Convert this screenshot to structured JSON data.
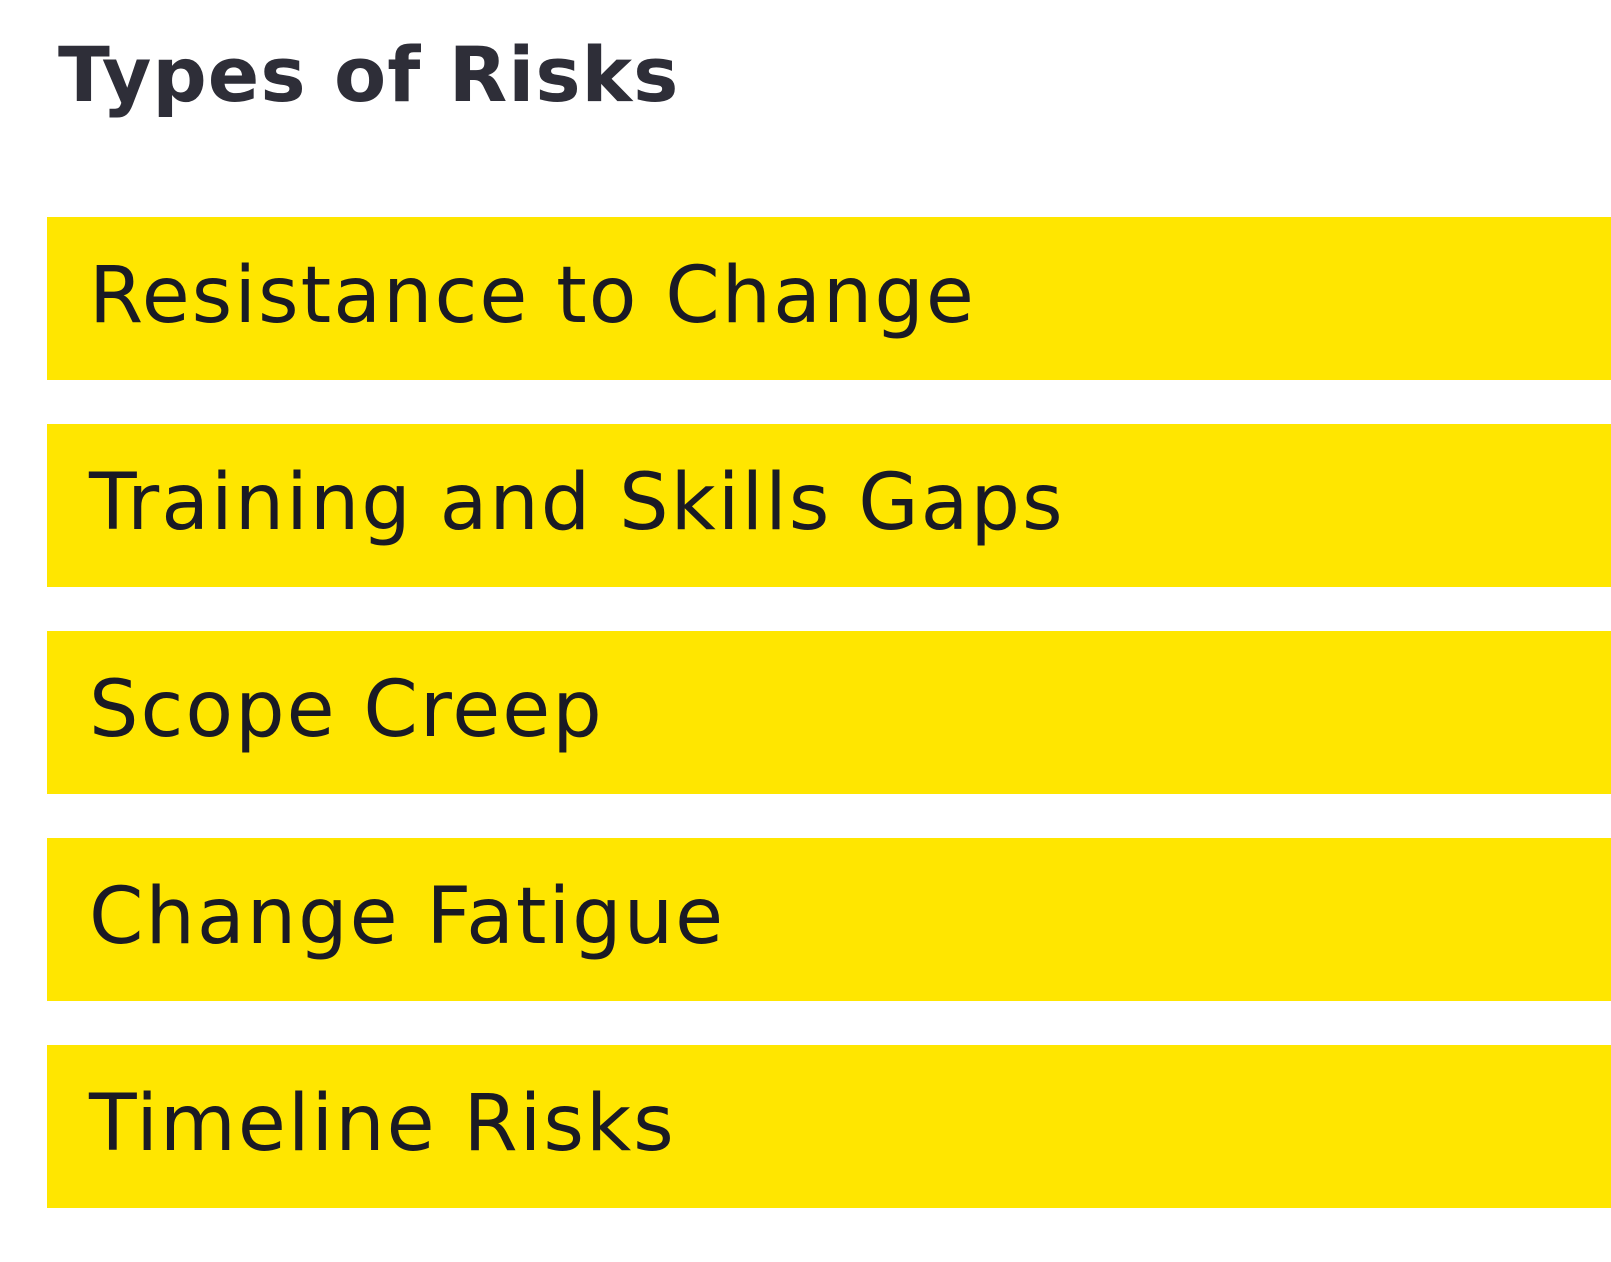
{
  "page": {
    "title": "Types of Risks"
  },
  "colors": {
    "accent": "#ffe600",
    "text": "#2e2e38",
    "background": "#ffffff"
  },
  "risks": [
    {
      "label": "Resistance to Change"
    },
    {
      "label": "Training and Skills Gaps"
    },
    {
      "label": "Scope Creep"
    },
    {
      "label": "Change Fatigue"
    },
    {
      "label": "Timeline Risks"
    }
  ]
}
